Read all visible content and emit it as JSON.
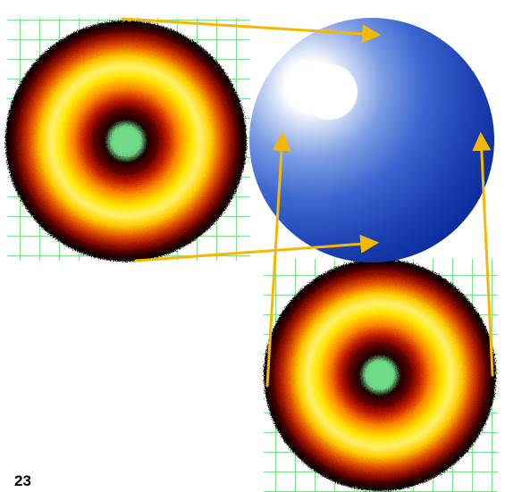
{
  "page_number": "23",
  "colors": {
    "arrow": "#f5b800",
    "sphere_highlight": "#ffffff",
    "sphere_mid": "#3f6fd6",
    "sphere_dark": "#0a2a9a",
    "grid_line": "#7ee08a",
    "ring_dark": "#1a0000",
    "ring_red": "#8b0a00",
    "ring_orange": "#e04a00",
    "ring_yellow": "#ffe600",
    "center_green": "#2a9a4a"
  }
}
